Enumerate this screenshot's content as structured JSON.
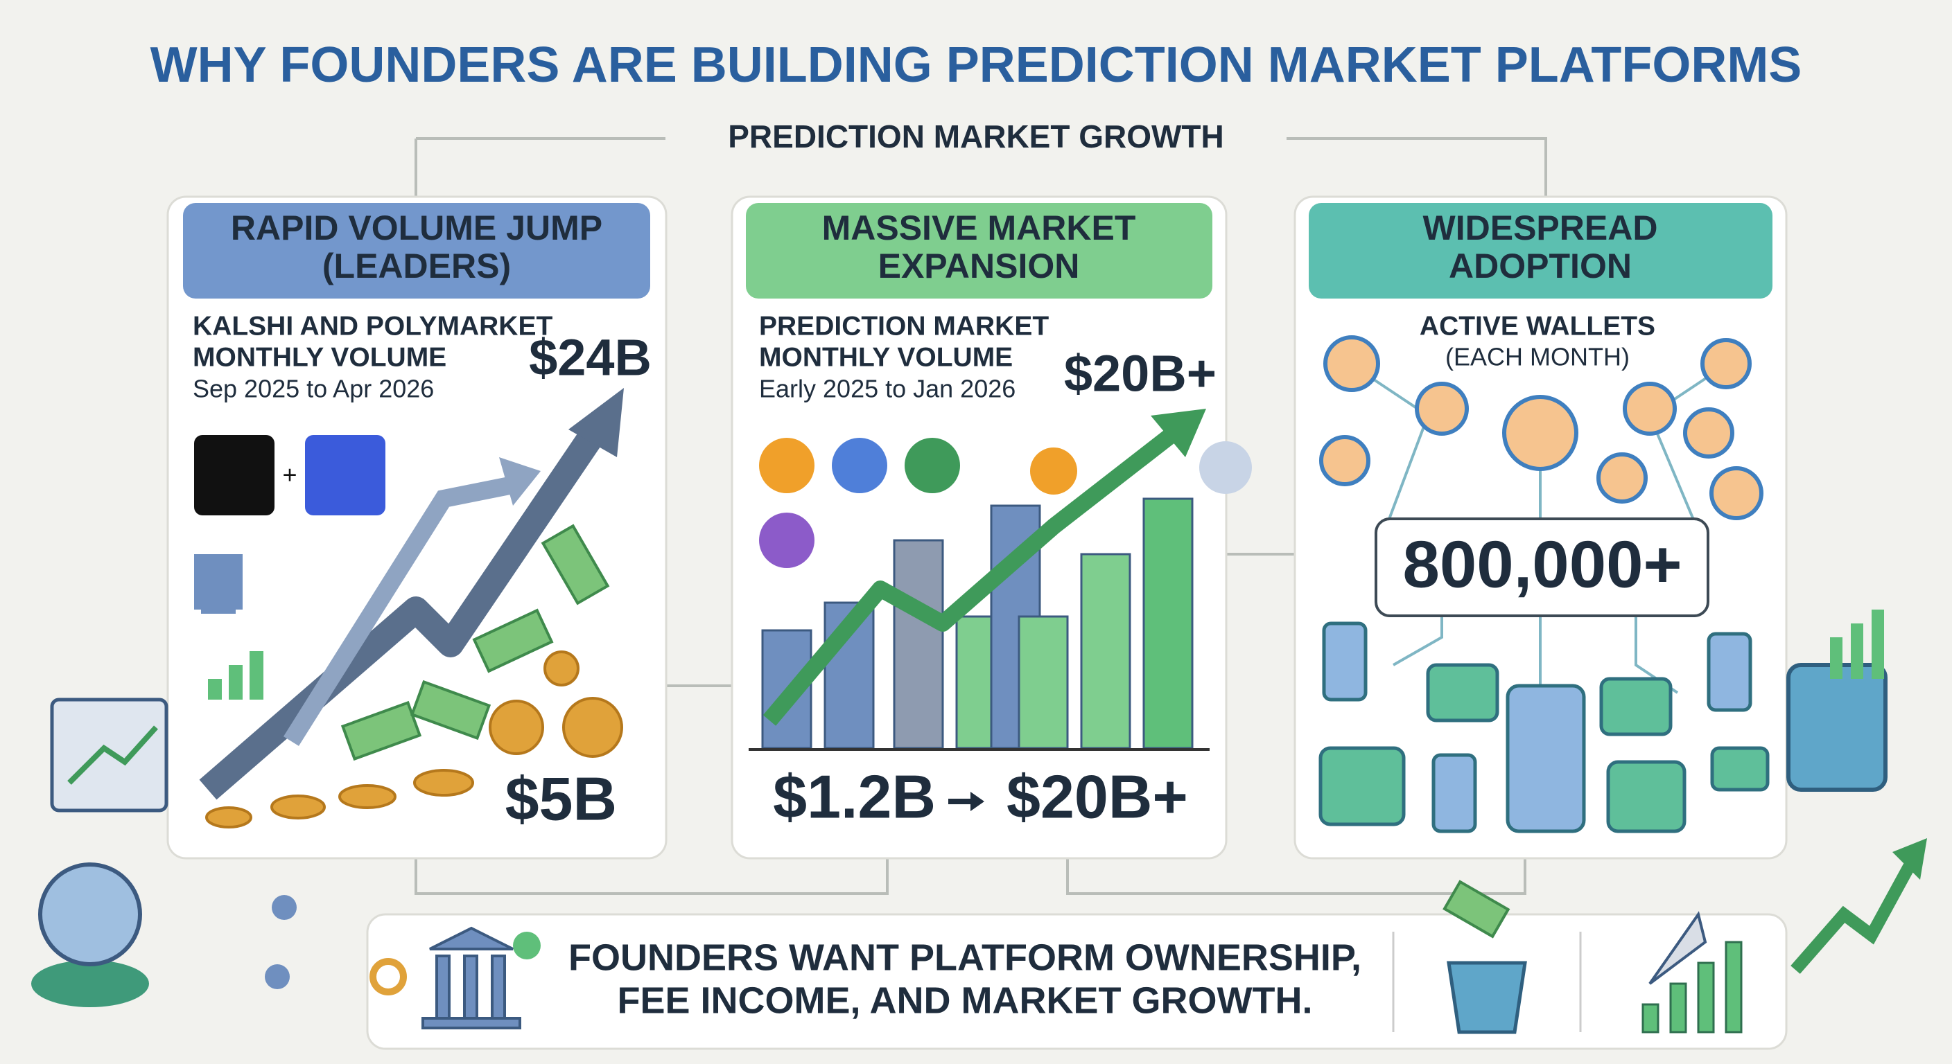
{
  "title": "WHY FOUNDERS ARE BUILDING PREDICTION MARKET PLATFORMS",
  "subtitle": "PREDICTION MARKET GROWTH",
  "cards": [
    {
      "header": [
        "RAPID VOLUME JUMP",
        "(LEADERS)"
      ],
      "label": [
        "KALSHI AND POLYMARKET",
        "MONTHLY VOLUME"
      ],
      "period": "Sep 2025 to Apr 2026",
      "end_value": "$24B",
      "start_value": "$5B"
    },
    {
      "header": [
        "MASSIVE MARKET",
        "EXPANSION"
      ],
      "label": [
        "PREDICTION MARKET",
        "MONTHLY VOLUME"
      ],
      "period": "Early 2025 to Jan 2026",
      "peak_value": "$20B+",
      "range_from": "$1.2B",
      "range_to": "$20B+"
    },
    {
      "header": [
        "WIDESPREAD",
        "ADOPTION"
      ],
      "label": [
        "ACTIVE WALLETS",
        "(EACH MONTH)"
      ],
      "value": "800,000+"
    }
  ],
  "footer": [
    "FOUNDERS WANT PLATFORM OWNERSHIP,",
    "FEE INCOME, AND MARKET GROWTH."
  ]
}
